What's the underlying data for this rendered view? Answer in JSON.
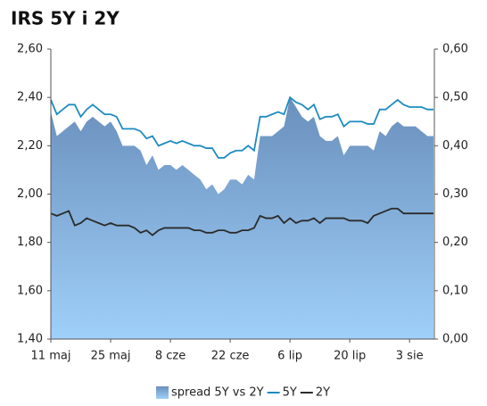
{
  "chart_data": {
    "type": "line",
    "title": "IRS 5Y i 2Y",
    "categories": [
      "11 maj",
      null,
      null,
      null,
      null,
      null,
      null,
      null,
      null,
      null,
      "25 maj",
      null,
      null,
      null,
      null,
      null,
      null,
      null,
      null,
      null,
      "8 cze",
      null,
      null,
      null,
      null,
      null,
      null,
      null,
      null,
      null,
      "22 cze",
      null,
      null,
      null,
      null,
      null,
      null,
      null,
      null,
      null,
      "6 lip",
      null,
      null,
      null,
      null,
      null,
      null,
      null,
      null,
      null,
      "20 lip",
      null,
      null,
      null,
      null,
      null,
      null,
      null,
      null,
      null,
      "3 sie",
      null,
      null,
      null,
      null
    ],
    "series": [
      {
        "name": "spread 5Y vs 2Y",
        "type": "area",
        "axis": "y2",
        "color": "#6a8fbc",
        "values": [
          0.47,
          0.42,
          0.43,
          0.44,
          0.45,
          0.43,
          0.45,
          0.46,
          0.45,
          0.44,
          0.45,
          0.43,
          0.4,
          0.4,
          0.4,
          0.39,
          0.36,
          0.38,
          0.35,
          0.36,
          0.36,
          0.35,
          0.36,
          0.35,
          0.34,
          0.33,
          0.31,
          0.32,
          0.3,
          0.31,
          0.33,
          0.33,
          0.32,
          0.34,
          0.33,
          0.42,
          0.42,
          0.42,
          0.43,
          0.44,
          0.5,
          0.48,
          0.46,
          0.45,
          0.46,
          0.42,
          0.41,
          0.41,
          0.42,
          0.38,
          0.4,
          0.4,
          0.4,
          0.4,
          0.39,
          0.43,
          0.42,
          0.44,
          0.45,
          0.44,
          0.44,
          0.44,
          0.43,
          0.42,
          0.42
        ]
      },
      {
        "name": "5Y",
        "type": "line",
        "color": "#1e8cc0",
        "values": [
          2.39,
          2.33,
          2.35,
          2.37,
          2.37,
          2.32,
          2.35,
          2.37,
          2.35,
          2.33,
          2.33,
          2.32,
          2.27,
          2.27,
          2.27,
          2.26,
          2.23,
          2.24,
          2.2,
          2.21,
          2.22,
          2.21,
          2.22,
          2.21,
          2.2,
          2.2,
          2.19,
          2.19,
          2.15,
          2.15,
          2.17,
          2.18,
          2.18,
          2.2,
          2.18,
          2.32,
          2.32,
          2.33,
          2.34,
          2.33,
          2.4,
          2.38,
          2.37,
          2.35,
          2.37,
          2.31,
          2.32,
          2.32,
          2.33,
          2.28,
          2.3,
          2.3,
          2.3,
          2.29,
          2.29,
          2.35,
          2.35,
          2.37,
          2.39,
          2.37,
          2.36,
          2.36,
          2.36,
          2.35,
          2.35
        ]
      },
      {
        "name": "2Y",
        "type": "line",
        "color": "#2b2b2b",
        "values": [
          1.92,
          1.91,
          1.92,
          1.93,
          1.87,
          1.88,
          1.9,
          1.89,
          1.88,
          1.87,
          1.88,
          1.87,
          1.87,
          1.87,
          1.86,
          1.84,
          1.85,
          1.83,
          1.85,
          1.86,
          1.86,
          1.86,
          1.86,
          1.86,
          1.85,
          1.85,
          1.84,
          1.84,
          1.85,
          1.85,
          1.84,
          1.84,
          1.85,
          1.85,
          1.86,
          1.91,
          1.9,
          1.9,
          1.91,
          1.88,
          1.9,
          1.88,
          1.89,
          1.89,
          1.9,
          1.88,
          1.9,
          1.9,
          1.9,
          1.9,
          1.89,
          1.89,
          1.89,
          1.88,
          1.91,
          1.92,
          1.93,
          1.94,
          1.94,
          1.92,
          1.92,
          1.92,
          1.92,
          1.92,
          1.92
        ]
      }
    ],
    "ylim": [
      1.4,
      2.6
    ],
    "yticks": [
      {
        "value": 1.4,
        "label": "1,40"
      },
      {
        "value": 1.6,
        "label": "1,60"
      },
      {
        "value": 1.8,
        "label": "1,80"
      },
      {
        "value": 2.0,
        "label": "2,00"
      },
      {
        "value": 2.2,
        "label": "2,20"
      },
      {
        "value": 2.4,
        "label": "2,40"
      },
      {
        "value": 2.6,
        "label": "2,60"
      }
    ],
    "y2lim": [
      0,
      0.6
    ],
    "y2ticks": [
      {
        "value": 0,
        "label": "0,00"
      },
      {
        "value": 0.1,
        "label": "0,10"
      },
      {
        "value": 0.2,
        "label": "0,20"
      },
      {
        "value": 0.3,
        "label": "0,30"
      },
      {
        "value": 0.4,
        "label": "0,40"
      },
      {
        "value": 0.5,
        "label": "0,50"
      },
      {
        "value": 0.6,
        "label": "0,60"
      }
    ],
    "grid": false,
    "legend": "bottom"
  }
}
